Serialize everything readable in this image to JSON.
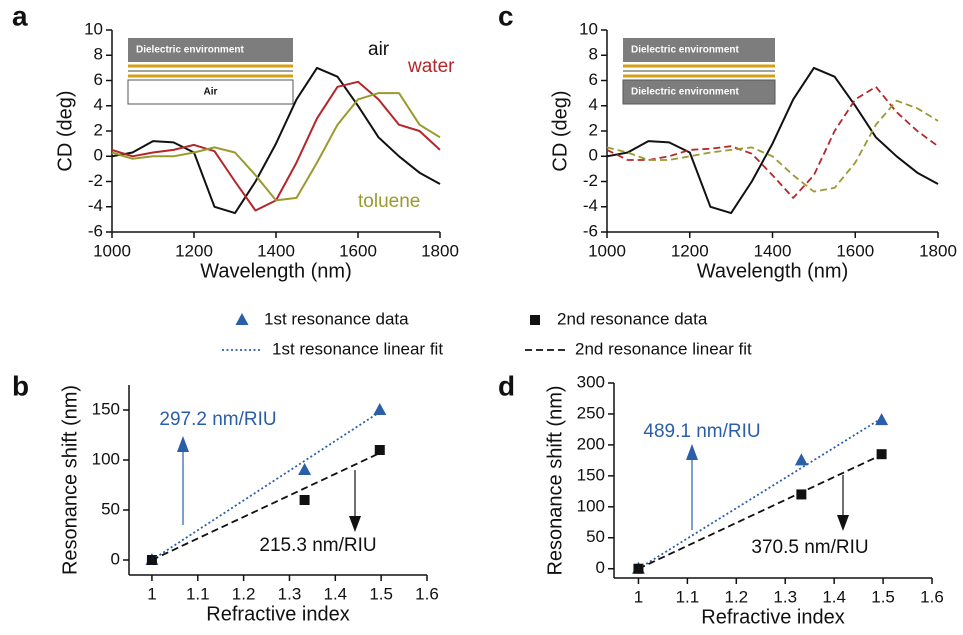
{
  "chart_data": [
    {
      "type": "line",
      "panel": "a",
      "xlabel": "Wavelength (nm)",
      "ylabel": "CD (deg)",
      "xlim": [
        1000,
        1800
      ],
      "ylim": [
        -6,
        10
      ],
      "xticks": [
        1000,
        1200,
        1400,
        1600,
        1800
      ],
      "yticks": [
        -6,
        -4,
        -2,
        0,
        2,
        4,
        6,
        8,
        10
      ],
      "inset": [
        "Dielectric environment",
        "Air"
      ],
      "x": [
        1000,
        1050,
        1100,
        1150,
        1200,
        1250,
        1300,
        1350,
        1400,
        1450,
        1500,
        1550,
        1600,
        1650,
        1700,
        1750,
        1800
      ],
      "series": [
        {
          "name": "air",
          "color": "#111111",
          "style": "solid",
          "values": [
            0,
            0.3,
            1.2,
            1.1,
            0.3,
            -4.0,
            -4.5,
            -2.0,
            1.0,
            4.5,
            7.0,
            6.3,
            4.0,
            1.5,
            0,
            -1.3,
            -2.2
          ]
        },
        {
          "name": "water",
          "color": "#b3262a",
          "style": "solid",
          "values": [
            0.5,
            0,
            0.3,
            0.5,
            0.9,
            0.4,
            -2.0,
            -4.3,
            -3.5,
            -0.5,
            3.0,
            5.5,
            5.9,
            4.5,
            2.5,
            2.0,
            0.5
          ]
        },
        {
          "name": "toluene",
          "color": "#9a9a2e",
          "style": "solid",
          "values": [
            0.3,
            -0.2,
            0,
            0,
            0.3,
            0.7,
            0.3,
            -1.5,
            -3.5,
            -3.3,
            -0.5,
            2.5,
            4.5,
            5.0,
            5.0,
            2.5,
            1.5
          ]
        }
      ]
    },
    {
      "type": "scatter",
      "panel": "b",
      "xlabel": "Refractive index",
      "ylabel": "Resonance shift (nm)",
      "xlim": [
        0.95,
        1.6
      ],
      "ylim": [
        -15,
        175
      ],
      "xticks": [
        1,
        1.1,
        1.2,
        1.3,
        1.4,
        1.5,
        1.6
      ],
      "yticks": [
        0,
        50,
        100,
        150
      ],
      "legend": true,
      "annotations": [
        {
          "text": "297.2 nm/RIU",
          "color": "#2a5ea8"
        },
        {
          "text": "215.3 nm/RIU",
          "color": "#111111"
        }
      ],
      "series": [
        {
          "name": "1st resonance data",
          "color": "#2a5ea8",
          "style": "triangle",
          "x": [
            1,
            1.333,
            1.497
          ],
          "values": [
            0,
            90,
            150
          ]
        },
        {
          "name": "2nd resonance data",
          "color": "#111111",
          "style": "square",
          "x": [
            1,
            1.333,
            1.497
          ],
          "values": [
            0,
            60,
            110
          ]
        },
        {
          "name": "1st resonance linear fit",
          "color": "#2a5ea8",
          "style": "dotted",
          "x": [
            1,
            1.497
          ],
          "values": [
            0,
            148
          ]
        },
        {
          "name": "2nd resonance linear fit",
          "color": "#111111",
          "style": "dashed",
          "x": [
            1,
            1.497
          ],
          "values": [
            0,
            107
          ]
        }
      ]
    },
    {
      "type": "line",
      "panel": "c",
      "xlabel": "Wavelength (nm)",
      "ylabel": "CD (deg)",
      "xlim": [
        1000,
        1800
      ],
      "ylim": [
        -6,
        10
      ],
      "xticks": [
        1000,
        1200,
        1400,
        1600,
        1800
      ],
      "yticks": [
        -6,
        -4,
        -2,
        0,
        2,
        4,
        6,
        8,
        10
      ],
      "inset": [
        "Dielectric environment",
        "Dielectric environment"
      ],
      "x": [
        1000,
        1050,
        1100,
        1150,
        1200,
        1250,
        1300,
        1350,
        1400,
        1450,
        1500,
        1550,
        1600,
        1650,
        1700,
        1750,
        1800
      ],
      "series": [
        {
          "color": "#111111",
          "style": "solid",
          "values": [
            0,
            0.3,
            1.2,
            1.1,
            0.3,
            -4.0,
            -4.5,
            -2.0,
            1.0,
            4.5,
            7.0,
            6.3,
            4.0,
            1.5,
            0,
            -1.3,
            -2.2
          ]
        },
        {
          "color": "#b3262a",
          "style": "dashed",
          "values": [
            0.5,
            -0.3,
            -0.3,
            0,
            0.5,
            0.6,
            0.8,
            0.2,
            -1.5,
            -3.3,
            -1.5,
            2.0,
            4.5,
            5.5,
            3.5,
            2.0,
            0.8
          ]
        },
        {
          "color": "#9a9a2e",
          "style": "dashed",
          "values": [
            0.7,
            0.3,
            -0.3,
            -0.3,
            0,
            0.3,
            0.5,
            0.7,
            0,
            -1.5,
            -2.8,
            -2.5,
            -0.5,
            2.5,
            4.4,
            3.8,
            2.8
          ]
        }
      ]
    },
    {
      "type": "scatter",
      "panel": "d",
      "xlabel": "Refractive index",
      "ylabel": "Resonance shift (nm)",
      "xlim": [
        0.95,
        1.6
      ],
      "ylim": [
        -15,
        300
      ],
      "xticks": [
        1,
        1.1,
        1.2,
        1.3,
        1.4,
        1.5,
        1.6
      ],
      "yticks": [
        0,
        50,
        100,
        150,
        200,
        250,
        300
      ],
      "annotations": [
        {
          "text": "489.1 nm/RIU",
          "color": "#2a5ea8"
        },
        {
          "text": "370.5 nm/RIU",
          "color": "#111111"
        }
      ],
      "series": [
        {
          "color": "#2a5ea8",
          "style": "triangle",
          "x": [
            1,
            1.333,
            1.497
          ],
          "values": [
            0,
            175,
            240
          ]
        },
        {
          "color": "#111111",
          "style": "square",
          "x": [
            1,
            1.333,
            1.497
          ],
          "values": [
            0,
            120,
            185
          ]
        },
        {
          "color": "#2a5ea8",
          "style": "dotted",
          "x": [
            1,
            1.497
          ],
          "values": [
            0,
            243
          ]
        },
        {
          "color": "#111111",
          "style": "dashed",
          "x": [
            1,
            1.497
          ],
          "values": [
            0,
            184
          ]
        }
      ]
    }
  ]
}
